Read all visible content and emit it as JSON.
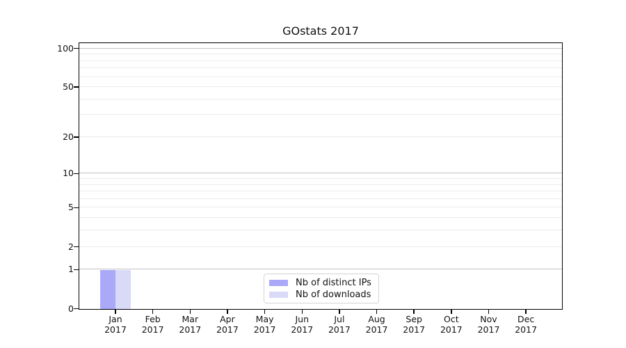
{
  "title": "GOstats 2017",
  "chart_data": {
    "type": "bar",
    "title": "GOstats 2017",
    "categories": [
      "Jan",
      "Feb",
      "Mar",
      "Apr",
      "May",
      "Jun",
      "Jul",
      "Aug",
      "Sep",
      "Oct",
      "Nov",
      "Dec"
    ],
    "category_year": "2017",
    "series": [
      {
        "name": "Nb of distinct IPs",
        "color": "#a9a9f8",
        "values": [
          1,
          0,
          0,
          0,
          0,
          0,
          0,
          0,
          0,
          0,
          0,
          0
        ]
      },
      {
        "name": "Nb of downloads",
        "color": "#d9d9f8",
        "values": [
          1,
          0,
          0,
          0,
          0,
          0,
          0,
          0,
          0,
          0,
          0,
          0
        ]
      }
    ],
    "yscale": "log1p",
    "ylim": [
      0,
      113
    ],
    "ytick_labels": [
      "0",
      "1",
      "2",
      "5",
      "10",
      "20",
      "50",
      "100"
    ],
    "ytick_values": [
      0,
      1,
      2,
      5,
      10,
      20,
      50,
      100
    ],
    "gridlines": {
      "major_values": [
        1,
        10,
        100
      ],
      "minor_values": [
        2,
        3,
        4,
        5,
        6,
        7,
        8,
        9,
        20,
        30,
        40,
        50,
        60,
        70,
        80,
        90
      ]
    },
    "legend": {
      "position": "bottom-center",
      "items": [
        "Nb of distinct IPs",
        "Nb of downloads"
      ]
    },
    "colors": {
      "grid_major": "#c2c2c2",
      "grid_minor": "#ebebeb",
      "axis": "#000000",
      "text": "#111111",
      "legend_border": "#d4d4d4",
      "background": "#ffffff"
    }
  }
}
